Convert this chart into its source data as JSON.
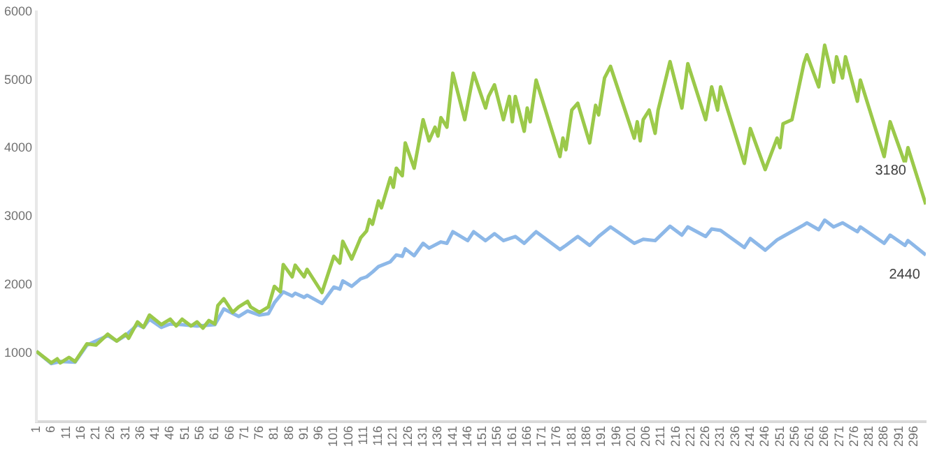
{
  "chart_data": {
    "type": "line",
    "ylim": [
      0,
      6000
    ],
    "yticks": [
      1000,
      2000,
      3000,
      4000,
      5000,
      6000
    ],
    "xlim": [
      1,
      300
    ],
    "xticks": [
      1,
      6,
      11,
      16,
      21,
      26,
      31,
      36,
      41,
      46,
      51,
      56,
      61,
      66,
      71,
      76,
      81,
      86,
      91,
      96,
      101,
      106,
      111,
      116,
      121,
      126,
      131,
      136,
      141,
      146,
      151,
      156,
      161,
      166,
      171,
      176,
      181,
      186,
      191,
      196,
      201,
      206,
      211,
      216,
      221,
      226,
      231,
      236,
      241,
      246,
      251,
      256,
      261,
      266,
      271,
      276,
      281,
      286,
      291,
      296
    ],
    "grid": false,
    "legend": false,
    "marker": "none",
    "series": [
      {
        "color": "#9bc94a",
        "x": [
          1,
          6,
          8,
          9,
          12,
          14,
          18,
          21,
          25,
          28,
          31,
          32,
          35,
          37,
          39,
          43,
          46,
          48,
          50,
          53,
          55,
          57,
          59,
          61,
          62,
          64,
          67,
          69,
          72,
          73,
          76,
          79,
          81,
          83,
          84,
          87,
          88,
          91,
          92,
          97,
          101,
          103,
          104,
          107,
          110,
          112,
          113,
          114,
          116,
          117,
          120,
          121,
          122,
          124,
          125,
          128,
          131,
          133,
          135,
          136,
          137,
          139,
          141,
          145,
          148,
          152,
          153,
          155,
          158,
          160,
          161,
          162,
          165,
          166,
          167,
          169,
          177,
          178,
          179,
          181,
          183,
          187,
          189,
          190,
          192,
          194,
          202,
          203,
          204,
          205,
          207,
          209,
          210,
          214,
          218,
          220,
          226,
          228,
          230,
          231,
          239,
          241,
          246,
          250,
          251,
          252,
          255,
          259,
          260,
          264,
          266,
          269,
          270,
          272,
          273,
          277,
          278,
          286,
          288,
          293,
          294,
          300
        ],
        "values": [
          1030,
          860,
          920,
          860,
          940,
          880,
          1140,
          1120,
          1280,
          1180,
          1280,
          1220,
          1460,
          1380,
          1560,
          1420,
          1500,
          1400,
          1500,
          1400,
          1460,
          1370,
          1480,
          1430,
          1700,
          1800,
          1600,
          1680,
          1760,
          1680,
          1600,
          1680,
          1980,
          1900,
          2300,
          2120,
          2290,
          2120,
          2230,
          1890,
          2420,
          2320,
          2640,
          2380,
          2690,
          2790,
          2960,
          2890,
          3230,
          3130,
          3570,
          3430,
          3710,
          3600,
          4080,
          3710,
          4420,
          4110,
          4310,
          4180,
          4450,
          4310,
          5100,
          4420,
          5100,
          4590,
          4760,
          4930,
          4420,
          4760,
          4390,
          4760,
          4250,
          4590,
          4390,
          5000,
          3880,
          4150,
          3980,
          4560,
          4660,
          4080,
          4630,
          4490,
          5030,
          5200,
          4150,
          4390,
          4110,
          4420,
          4560,
          4220,
          4560,
          5270,
          4590,
          5240,
          4420,
          4900,
          4560,
          4900,
          3780,
          4290,
          3690,
          4150,
          4010,
          4360,
          4420,
          5240,
          5370,
          4900,
          5510,
          4970,
          5340,
          5030,
          5340,
          4690,
          5000,
          3880,
          4390,
          3780,
          4010,
          3180
        ]
      },
      {
        "color": "#8db8e8",
        "x": [
          1,
          6,
          9,
          14,
          18,
          25,
          28,
          31,
          35,
          37,
          39,
          43,
          46,
          50,
          55,
          61,
          64,
          69,
          72,
          76,
          79,
          81,
          84,
          87,
          88,
          91,
          92,
          97,
          101,
          103,
          104,
          107,
          110,
          112,
          114,
          116,
          120,
          122,
          124,
          125,
          128,
          131,
          133,
          137,
          139,
          141,
          146,
          148,
          152,
          155,
          158,
          162,
          165,
          169,
          177,
          179,
          183,
          187,
          190,
          194,
          202,
          205,
          209,
          214,
          218,
          220,
          226,
          228,
          231,
          239,
          241,
          246,
          250,
          252,
          259,
          260,
          264,
          266,
          269,
          272,
          277,
          278,
          286,
          288,
          293,
          294,
          300
        ],
        "values": [
          1030,
          850,
          880,
          870,
          1120,
          1260,
          1180,
          1260,
          1420,
          1380,
          1500,
          1380,
          1430,
          1420,
          1400,
          1420,
          1650,
          1540,
          1620,
          1560,
          1580,
          1740,
          1900,
          1840,
          1880,
          1820,
          1850,
          1730,
          1970,
          1940,
          2060,
          1980,
          2090,
          2120,
          2190,
          2270,
          2340,
          2440,
          2420,
          2530,
          2430,
          2610,
          2540,
          2630,
          2610,
          2780,
          2650,
          2780,
          2650,
          2750,
          2650,
          2710,
          2610,
          2780,
          2520,
          2580,
          2710,
          2580,
          2710,
          2850,
          2610,
          2670,
          2650,
          2860,
          2730,
          2850,
          2710,
          2820,
          2800,
          2550,
          2680,
          2510,
          2660,
          2710,
          2880,
          2910,
          2810,
          2950,
          2850,
          2910,
          2780,
          2850,
          2610,
          2730,
          2580,
          2650,
          2440
        ]
      }
    ],
    "annotations": [
      {
        "text": "3180",
        "x": 300,
        "y": 3180
      },
      {
        "text": "2440",
        "x": 300,
        "y": 2440
      }
    ]
  }
}
